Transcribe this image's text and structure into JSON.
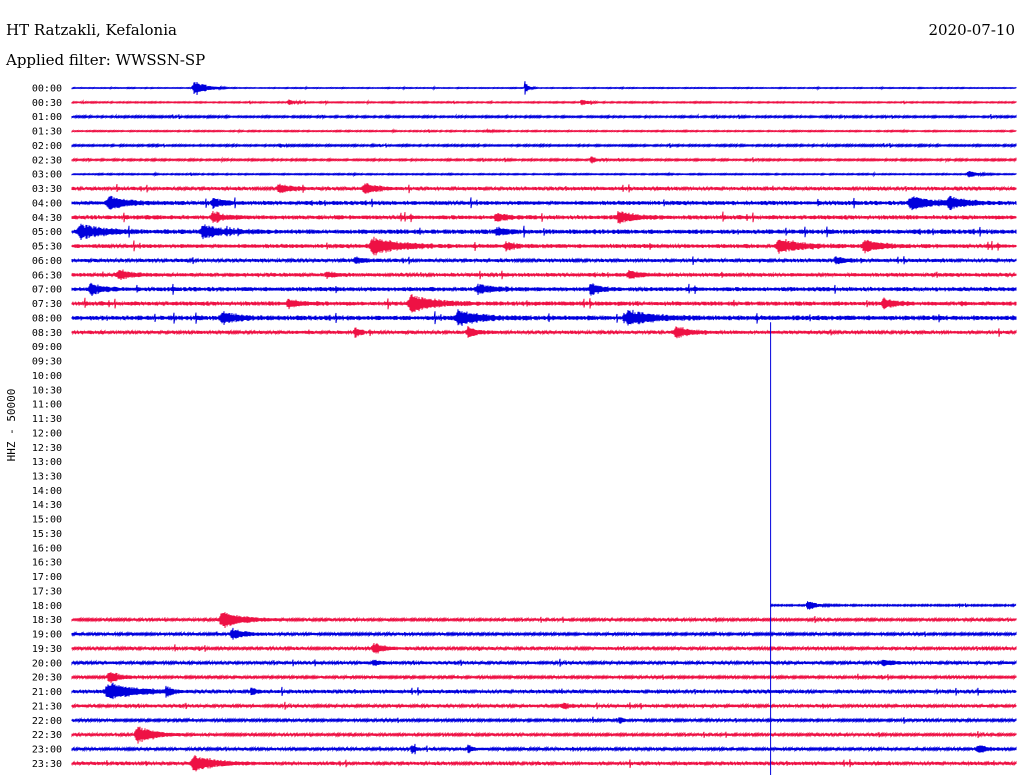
{
  "header": {
    "station": "HT Ratzakli, Kefalonia",
    "date": "2020-07-10",
    "filter": "Applied filter: WWSSN-SP"
  },
  "chart_data": {
    "type": "helicorder",
    "ylabel": "HHZ - 50000",
    "row_labels": [
      "00:00",
      "00:30",
      "01:00",
      "01:30",
      "02:00",
      "02:30",
      "03:00",
      "03:30",
      "04:00",
      "04:30",
      "05:00",
      "05:30",
      "06:00",
      "06:30",
      "07:00",
      "07:30",
      "08:00",
      "08:30",
      "09:00",
      "09:30",
      "10:00",
      "10:30",
      "11:00",
      "11:30",
      "12:00",
      "12:30",
      "13:00",
      "13:30",
      "14:00",
      "14:30",
      "15:00",
      "15:30",
      "16:00",
      "16:30",
      "17:00",
      "17:30",
      "18:00",
      "18:30",
      "19:00",
      "19:30",
      "20:00",
      "20:30",
      "21:00",
      "21:30",
      "22:00",
      "22:30",
      "23:00",
      "23:30"
    ],
    "trace_colors": [
      "#0000dd",
      "#ee1144"
    ],
    "data_gap": {
      "from": "08:30",
      "to": "17:30",
      "resume_fraction": 0.74
    },
    "rows": [
      {
        "label": "00:00",
        "noise": 0.5,
        "events": [
          [
            0.13,
            9,
            0.01
          ],
          [
            0.48,
            7,
            0.003
          ]
        ]
      },
      {
        "label": "00:30",
        "noise": 0.7,
        "events": [
          [
            0.23,
            3,
            0.006
          ],
          [
            0.54,
            4,
            0.005
          ]
        ]
      },
      {
        "label": "01:00",
        "noise": 1.0,
        "events": []
      },
      {
        "label": "01:30",
        "noise": 0.7,
        "events": [
          [
            0.44,
            2,
            0.004
          ]
        ]
      },
      {
        "label": "02:00",
        "noise": 1.0,
        "events": [
          [
            0.22,
            2,
            0.004
          ]
        ]
      },
      {
        "label": "02:30",
        "noise": 1.0,
        "events": [
          [
            0.55,
            4,
            0.005
          ]
        ]
      },
      {
        "label": "03:00",
        "noise": 0.7,
        "events": [
          [
            0.95,
            4,
            0.008
          ]
        ]
      },
      {
        "label": "03:30",
        "noise": 1.8,
        "events": [
          [
            0.22,
            5,
            0.012
          ],
          [
            0.31,
            6,
            0.012
          ]
        ]
      },
      {
        "label": "04:00",
        "noise": 2.2,
        "events": [
          [
            0.04,
            7,
            0.018
          ],
          [
            0.15,
            5,
            0.01
          ],
          [
            0.89,
            7,
            0.02
          ],
          [
            0.93,
            6,
            0.015
          ]
        ]
      },
      {
        "label": "04:30",
        "noise": 2.3,
        "events": [
          [
            0.15,
            6,
            0.01
          ],
          [
            0.45,
            4,
            0.01
          ],
          [
            0.58,
            6,
            0.015
          ]
        ]
      },
      {
        "label": "05:00",
        "noise": 2.5,
        "events": [
          [
            0.01,
            8,
            0.02
          ],
          [
            0.14,
            7,
            0.02
          ],
          [
            0.45,
            4,
            0.01
          ]
        ]
      },
      {
        "label": "05:30",
        "noise": 2.2,
        "events": [
          [
            0.32,
            9,
            0.025
          ],
          [
            0.46,
            4,
            0.008
          ],
          [
            0.75,
            8,
            0.02
          ],
          [
            0.84,
            7,
            0.015
          ]
        ]
      },
      {
        "label": "06:00",
        "noise": 1.8,
        "events": [
          [
            0.3,
            3,
            0.01
          ],
          [
            0.81,
            4,
            0.01
          ]
        ]
      },
      {
        "label": "06:30",
        "noise": 2.0,
        "events": [
          [
            0.05,
            5,
            0.012
          ],
          [
            0.27,
            3,
            0.008
          ],
          [
            0.59,
            4,
            0.012
          ]
        ]
      },
      {
        "label": "07:00",
        "noise": 2.3,
        "events": [
          [
            0.02,
            6,
            0.01
          ],
          [
            0.43,
            5,
            0.015
          ],
          [
            0.55,
            7,
            0.008
          ]
        ]
      },
      {
        "label": "07:30",
        "noise": 2.3,
        "events": [
          [
            0.23,
            4,
            0.012
          ],
          [
            0.36,
            10,
            0.02
          ],
          [
            0.86,
            5,
            0.01
          ]
        ]
      },
      {
        "label": "08:00",
        "noise": 2.6,
        "events": [
          [
            0.16,
            6,
            0.015
          ],
          [
            0.41,
            8,
            0.02
          ],
          [
            0.59,
            7,
            0.025
          ]
        ]
      },
      {
        "label": "08:30",
        "noise": 1.8,
        "events": [
          [
            0.3,
            7,
            0.004
          ],
          [
            0.42,
            6,
            0.008
          ],
          [
            0.64,
            6,
            0.015
          ]
        ]
      },
      {
        "label": "18:00",
        "noise": 0.8,
        "events": [
          [
            0.78,
            5,
            0.008
          ]
        ]
      },
      {
        "label": "18:30",
        "noise": 1.4,
        "events": [
          [
            0.16,
            9,
            0.02
          ]
        ]
      },
      {
        "label": "19:00",
        "noise": 1.4,
        "events": [
          [
            0.17,
            6,
            0.012
          ]
        ]
      },
      {
        "label": "19:30",
        "noise": 1.6,
        "events": [
          [
            0.32,
            6,
            0.01
          ]
        ]
      },
      {
        "label": "20:00",
        "noise": 1.6,
        "events": [
          [
            0.32,
            3,
            0.008
          ],
          [
            0.86,
            3,
            0.01
          ]
        ]
      },
      {
        "label": "20:30",
        "noise": 1.4,
        "events": [
          [
            0.04,
            7,
            0.01
          ]
        ]
      },
      {
        "label": "21:00",
        "noise": 1.8,
        "events": [
          [
            0.04,
            10,
            0.025
          ],
          [
            0.1,
            6,
            0.004
          ],
          [
            0.19,
            5,
            0.003
          ]
        ]
      },
      {
        "label": "21:30",
        "noise": 1.6,
        "events": [
          [
            0.52,
            3,
            0.008
          ]
        ]
      },
      {
        "label": "22:00",
        "noise": 1.4,
        "events": [
          [
            0.58,
            5,
            0.003
          ]
        ]
      },
      {
        "label": "22:30",
        "noise": 1.4,
        "events": [
          [
            0.07,
            10,
            0.015
          ]
        ]
      },
      {
        "label": "23:00",
        "noise": 1.5,
        "events": [
          [
            0.36,
            5,
            0.003
          ],
          [
            0.42,
            5,
            0.003
          ],
          [
            0.96,
            4,
            0.01
          ]
        ]
      },
      {
        "label": "23:30",
        "noise": 1.8,
        "events": [
          [
            0.13,
            9,
            0.02
          ]
        ]
      }
    ]
  }
}
